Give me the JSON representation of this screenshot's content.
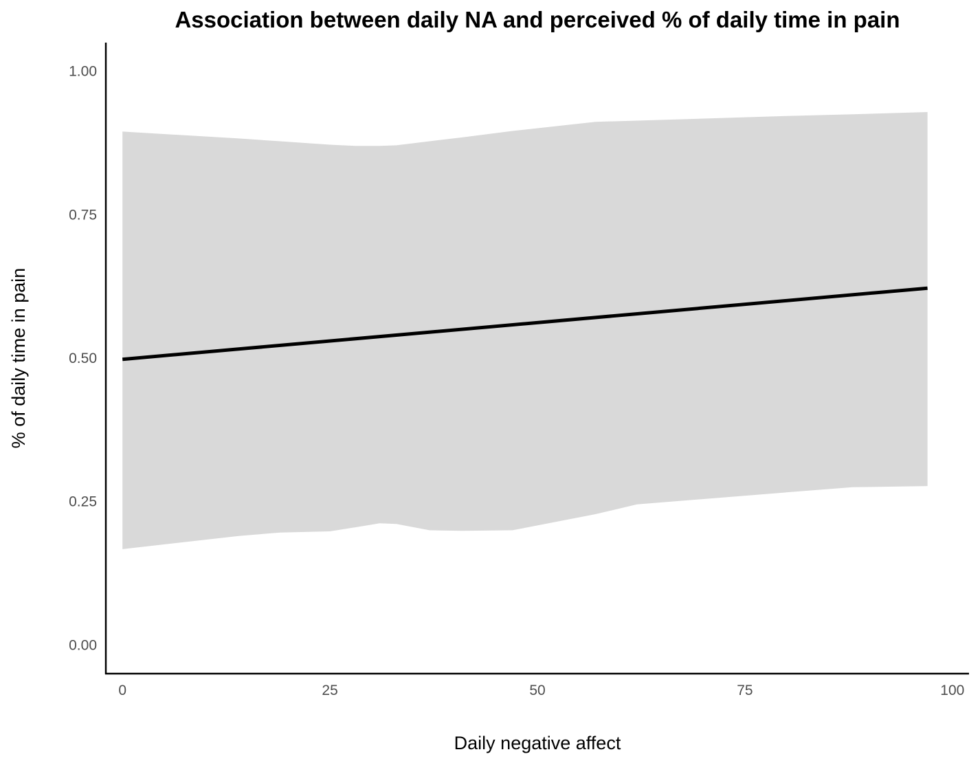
{
  "chart_data": {
    "type": "line",
    "title": "Association between daily NA and perceived % of daily time in pain",
    "xlabel": "Daily negative affect",
    "ylabel": "% of daily time in pain",
    "xlim": [
      -2,
      102
    ],
    "ylim": [
      -0.05,
      1.05
    ],
    "x_ticks": [
      0,
      25,
      50,
      75,
      100
    ],
    "x_tick_labels": [
      "0",
      "25",
      "50",
      "75",
      "100"
    ],
    "y_ticks": [
      0,
      0.25,
      0.5,
      0.75,
      1.0
    ],
    "y_tick_labels": [
      "0.00",
      "0.25",
      "0.50",
      "0.75",
      "1.00"
    ],
    "grid": false,
    "legend": "none",
    "series": [
      {
        "x": [
          0,
          97
        ],
        "y": [
          0.498,
          0.622
        ],
        "color": "#000000"
      }
    ],
    "ribbon": {
      "color": "#d9d9d9",
      "x": [
        0,
        14,
        19,
        25,
        28,
        31,
        33,
        37,
        41,
        47,
        57,
        62,
        80,
        88,
        97
      ],
      "upper": [
        0.895,
        0.883,
        0.878,
        0.872,
        0.87,
        0.87,
        0.871,
        0.878,
        0.885,
        0.896,
        0.912,
        0.914,
        0.922,
        0.925,
        0.929
      ],
      "lower": [
        0.167,
        0.19,
        0.196,
        0.198,
        0.205,
        0.212,
        0.211,
        0.2,
        0.199,
        0.2,
        0.228,
        0.245,
        0.266,
        0.275,
        0.277
      ]
    }
  }
}
